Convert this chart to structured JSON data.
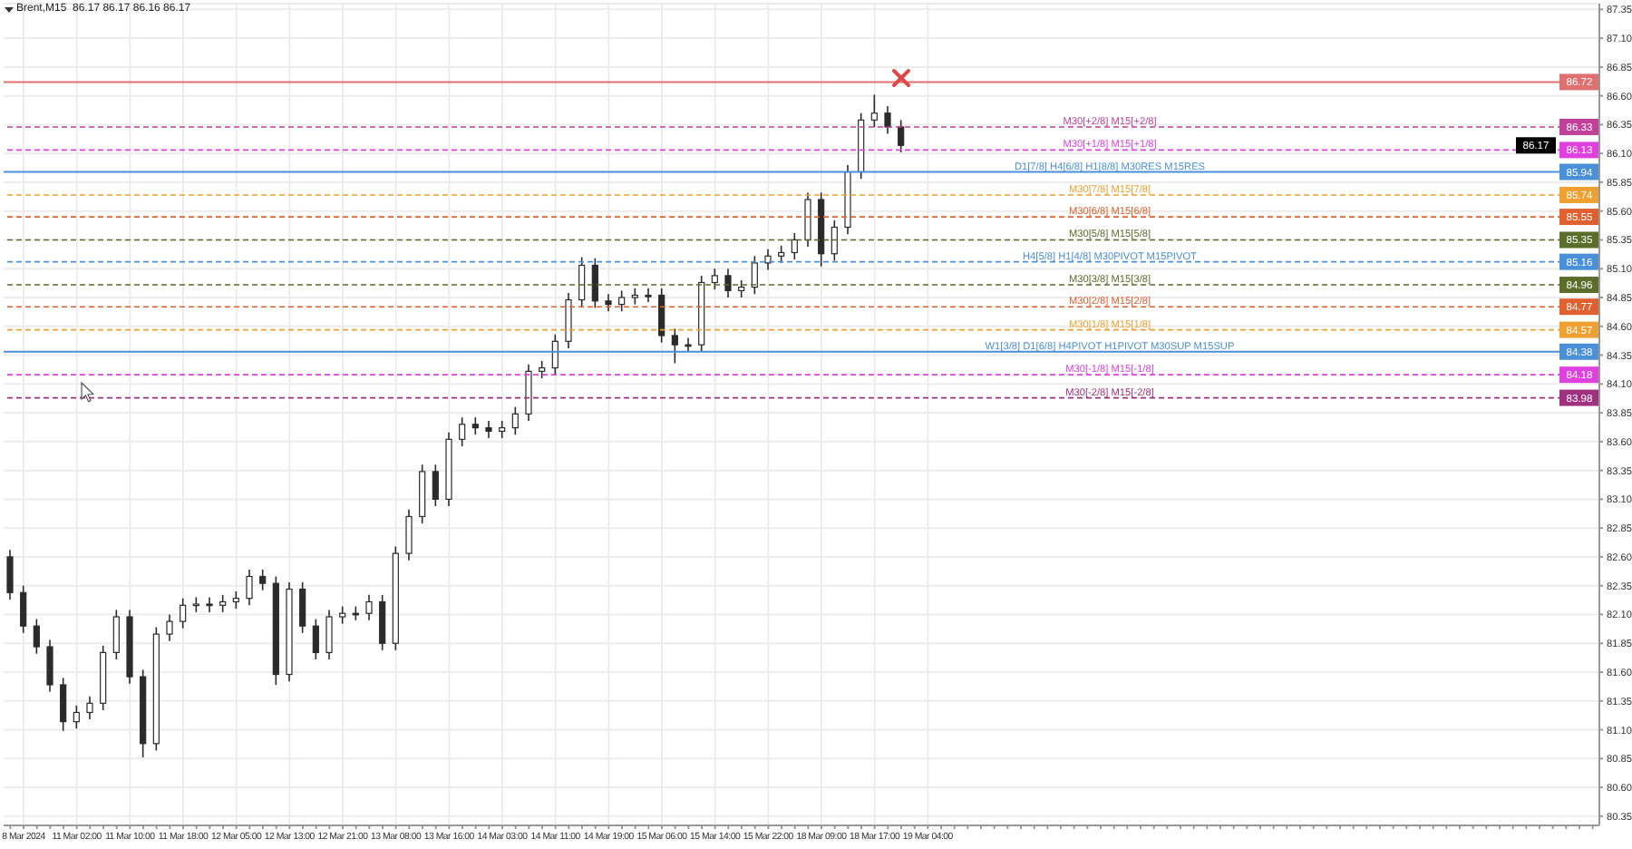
{
  "chart_data": {
    "type": "candlestick",
    "title": "Brent,M15  86.17 86.17 86.16 86.17",
    "color": "#2b2b2b",
    "grid": true,
    "categories": [
      null,
      "8 Mar 2024",
      null,
      null,
      null,
      "11 Mar 02:00",
      null,
      null,
      null,
      "11 Mar 10:00",
      null,
      null,
      null,
      "11 Mar 18:00",
      null,
      null,
      null,
      "12 Mar 05:00",
      null,
      null,
      null,
      "12 Mar 13:00",
      null,
      null,
      null,
      "12 Mar 21:00",
      null,
      null,
      null,
      "13 Mar 08:00",
      null,
      null,
      null,
      "13 Mar 16:00",
      null,
      null,
      null,
      "14 Mar 03:00",
      null,
      null,
      null,
      "14 Mar 11:00",
      null,
      null,
      null,
      "14 Mar 19:00",
      null,
      null,
      null,
      "15 Mar 06:00",
      null,
      null,
      null,
      "15 Mar 14:00",
      null,
      null,
      null,
      "15 Mar 22:00",
      null,
      null,
      null,
      "18 Mar 09:00",
      null,
      null,
      null,
      "18 Mar 17:00",
      null,
      null,
      null,
      "19 Mar 04:00",
      null,
      null,
      null,
      null,
      null,
      null,
      null,
      null,
      null,
      null,
      null,
      null,
      null,
      null,
      null,
      null,
      null,
      null,
      null,
      null,
      null,
      null,
      null,
      null,
      null,
      null,
      null,
      null,
      null,
      null,
      null,
      null,
      null,
      null,
      null,
      null,
      null,
      null,
      null,
      null,
      null,
      null,
      null,
      null,
      null,
      null,
      null,
      null,
      null,
      null
    ],
    "ohlc": [
      [
        82.6,
        82.66,
        82.23,
        82.29
      ],
      [
        82.29,
        82.35,
        81.94,
        82.0
      ],
      [
        82.0,
        82.06,
        81.76,
        81.82
      ],
      [
        81.82,
        81.88,
        81.43,
        81.49
      ],
      [
        81.49,
        81.55,
        81.09,
        81.17
      ],
      [
        81.17,
        81.31,
        81.11,
        81.25
      ],
      [
        81.25,
        81.39,
        81.19,
        81.33
      ],
      [
        81.33,
        81.83,
        81.27,
        81.77
      ],
      [
        81.77,
        82.14,
        81.71,
        82.08
      ],
      [
        82.08,
        82.14,
        81.5,
        81.56
      ],
      [
        81.56,
        81.62,
        80.86,
        80.98
      ],
      [
        80.98,
        81.99,
        80.92,
        81.93
      ],
      [
        81.93,
        82.1,
        81.87,
        82.04
      ],
      [
        82.04,
        82.24,
        81.98,
        82.18
      ],
      [
        82.18,
        82.25,
        82.12,
        82.19
      ],
      [
        82.19,
        82.25,
        82.12,
        82.18
      ],
      [
        82.18,
        82.27,
        82.12,
        82.21
      ],
      [
        82.21,
        82.3,
        82.15,
        82.24
      ],
      [
        82.24,
        82.49,
        82.18,
        82.43
      ],
      [
        82.43,
        82.49,
        82.31,
        82.37
      ],
      [
        82.37,
        82.43,
        81.49,
        81.58
      ],
      [
        81.58,
        82.38,
        81.52,
        82.32
      ],
      [
        82.32,
        82.38,
        81.94,
        82.0
      ],
      [
        82.0,
        82.06,
        81.71,
        81.77
      ],
      [
        81.77,
        82.14,
        81.71,
        82.08
      ],
      [
        82.08,
        82.17,
        82.02,
        82.11
      ],
      [
        82.11,
        82.17,
        82.05,
        82.11
      ],
      [
        82.11,
        82.27,
        82.05,
        82.21
      ],
      [
        82.21,
        82.27,
        81.79,
        81.85
      ],
      [
        81.85,
        82.69,
        81.79,
        82.63
      ],
      [
        82.63,
        83.01,
        82.57,
        82.95
      ],
      [
        82.95,
        83.4,
        82.89,
        83.34
      ],
      [
        83.34,
        83.4,
        83.04,
        83.1
      ],
      [
        83.1,
        83.68,
        83.04,
        83.62
      ],
      [
        83.62,
        83.81,
        83.56,
        83.75
      ],
      [
        83.75,
        83.81,
        83.66,
        83.72
      ],
      [
        83.72,
        83.78,
        83.63,
        83.69
      ],
      [
        83.69,
        83.78,
        83.63,
        83.72
      ],
      [
        83.72,
        83.9,
        83.66,
        83.84
      ],
      [
        83.84,
        84.27,
        83.78,
        84.21
      ],
      [
        84.21,
        84.3,
        84.15,
        84.24
      ],
      [
        84.24,
        84.53,
        84.18,
        84.47
      ],
      [
        84.47,
        84.89,
        84.41,
        84.83
      ],
      [
        84.83,
        85.2,
        84.77,
        85.13
      ],
      [
        85.13,
        85.19,
        84.76,
        84.82
      ],
      [
        84.82,
        84.88,
        84.73,
        84.79
      ],
      [
        84.79,
        84.91,
        84.73,
        84.85
      ],
      [
        84.85,
        84.93,
        84.79,
        84.87
      ],
      [
        84.87,
        84.93,
        84.81,
        84.87
      ],
      [
        84.87,
        84.93,
        84.46,
        84.52
      ],
      [
        84.52,
        84.58,
        84.28,
        84.44
      ],
      [
        84.44,
        84.5,
        84.38,
        84.44
      ],
      [
        84.44,
        85.04,
        84.38,
        84.98
      ],
      [
        84.98,
        85.1,
        84.92,
        85.04
      ],
      [
        85.04,
        85.1,
        84.85,
        84.91
      ],
      [
        84.91,
        85.0,
        84.85,
        84.94
      ],
      [
        84.94,
        85.21,
        84.88,
        85.15
      ],
      [
        85.15,
        85.27,
        85.09,
        85.21
      ],
      [
        85.21,
        85.3,
        85.15,
        85.24
      ],
      [
        85.24,
        85.41,
        85.18,
        85.35
      ],
      [
        85.35,
        85.76,
        85.29,
        85.7
      ],
      [
        85.7,
        85.76,
        85.12,
        85.23
      ],
      [
        85.23,
        85.52,
        85.17,
        85.46
      ],
      [
        85.46,
        86.0,
        85.4,
        85.94
      ],
      [
        85.94,
        86.45,
        85.88,
        86.39
      ],
      [
        86.39,
        86.61,
        86.33,
        86.45
      ],
      [
        86.45,
        86.51,
        86.27,
        86.33
      ],
      [
        86.33,
        86.39,
        86.11,
        86.17
      ],
      null,
      null,
      null,
      null,
      null,
      null,
      null,
      null,
      null,
      null,
      null,
      null,
      null,
      null,
      null,
      null,
      null,
      null,
      null,
      null,
      null,
      null,
      null,
      null,
      null,
      null,
      null,
      null,
      null,
      null,
      null,
      null,
      null,
      null,
      null,
      null,
      null,
      null,
      null,
      null,
      null,
      null,
      null,
      null,
      null,
      null,
      null,
      null,
      null,
      null,
      null,
      null
    ],
    "annotations": [
      {
        "text": "86.72",
        "y": 86.72
      },
      {
        "text": "86.33",
        "y": 86.33
      },
      {
        "text": "86.17",
        "y": 86.17
      },
      {
        "text": "86.13",
        "y": 86.13
      },
      {
        "text": "85.94",
        "y": 85.94
      },
      {
        "text": "85.74",
        "y": 85.74
      },
      {
        "text": "85.55",
        "y": 85.55
      },
      {
        "text": "85.35",
        "y": 85.35
      },
      {
        "text": "85.16",
        "y": 85.16
      },
      {
        "text": "84.96",
        "y": 84.96
      },
      {
        "text": "84.77",
        "y": 84.77
      },
      {
        "text": "84.57",
        "y": 84.57
      },
      {
        "text": "84.38",
        "y": 84.38
      },
      {
        "text": "84.18",
        "y": 84.18
      },
      {
        "text": "83.98",
        "y": 83.98
      }
    ],
    "ylim": [
      80.27,
      87.4
    ],
    "yticks": [
      80.35,
      {
        "value": 80.6,
        "label": "80.60"
      },
      80.85,
      {
        "value": 81.1,
        "label": "81.10"
      },
      81.35,
      {
        "value": 81.6,
        "label": "81.60"
      },
      81.85,
      {
        "value": 82.1,
        "label": "82.10"
      },
      82.35,
      {
        "value": 82.6,
        "label": "82.60"
      },
      82.85,
      {
        "value": 83.1,
        "label": "83.10"
      },
      83.35,
      {
        "value": 83.6,
        "label": "83.60"
      },
      83.85,
      {
        "value": 84.1,
        "label": "84.10"
      },
      84.35,
      {
        "value": 84.6,
        "label": "84.60"
      },
      84.85,
      {
        "value": 85.1,
        "label": "85.10"
      },
      85.35,
      {
        "value": 85.6,
        "label": "85.60"
      },
      85.85,
      {
        "value": 86.1,
        "label": "86.10"
      },
      86.35,
      {
        "value": 86.6,
        "label": "86.60"
      },
      86.85,
      {
        "value": 87.1,
        "label": "87.10"
      },
      87.35
    ],
    "ref_lines": [
      {
        "axis": "y",
        "value": 86.72,
        "label": null,
        "color": "#e07070",
        "line_style": "solid"
      },
      {
        "axis": "y",
        "value": 86.33,
        "label": "M30[+2/8] M15[+2/8]",
        "color": "#c0409a",
        "line_style": "dashed"
      },
      {
        "axis": "y",
        "value": 86.13,
        "label": "M30[+1/8] M15[+1/8]",
        "color": "#e040e0",
        "line_style": "dashed"
      },
      {
        "axis": "y",
        "value": 85.94,
        "label": "D1[7/8] H4[6/8] H1[8/8] M30RES M15RES",
        "color": "#4a90d9",
        "line_style": "solid"
      },
      {
        "axis": "y",
        "value": 85.74,
        "label": "M30[7/8] M15[7/8]",
        "color": "#f0a030",
        "line_style": "dashed"
      },
      {
        "axis": "y",
        "value": 85.55,
        "label": "M30[6/8] M15[6/8]",
        "color": "#e06030",
        "line_style": "dashed"
      },
      {
        "axis": "y",
        "value": 85.35,
        "label": "M30[5/8] M15[5/8]",
        "color": "#5a6e2a",
        "line_style": "dashed"
      },
      {
        "axis": "y",
        "value": 85.16,
        "label": "H4[5/8] H1[4/8] M30PIVOT M15PIVOT",
        "color": "#4a90d9",
        "line_style": "dashed"
      },
      {
        "axis": "y",
        "value": 84.96,
        "label": "M30[3/8] M15[3/8]",
        "color": "#5a6e2a",
        "line_style": "dashed"
      },
      {
        "axis": "y",
        "value": 84.77,
        "label": "M30[2/8] M15[2/8]",
        "color": "#e06030",
        "line_style": "dashed"
      },
      {
        "axis": "y",
        "value": 84.57,
        "label": "M30[1/8] M15[1/8]",
        "color": "#f0a030",
        "line_style": "dashed"
      },
      {
        "axis": "y",
        "value": 84.38,
        "label": "W1[3/8] D1[6/8] H4PIVOT H1PIVOT M30SUP M15SUP",
        "color": "#4a90d9",
        "line_style": "solid"
      },
      {
        "axis": "y",
        "value": 84.18,
        "label": "M30[-1/8] M15[-1/8]",
        "color": "#e040e0",
        "line_style": "dashed"
      },
      {
        "axis": "y",
        "value": 83.98,
        "label": "M30[-2/8] M15[-2/8]",
        "color": "#a03080",
        "line_style": "dashed"
      }
    ]
  }
}
